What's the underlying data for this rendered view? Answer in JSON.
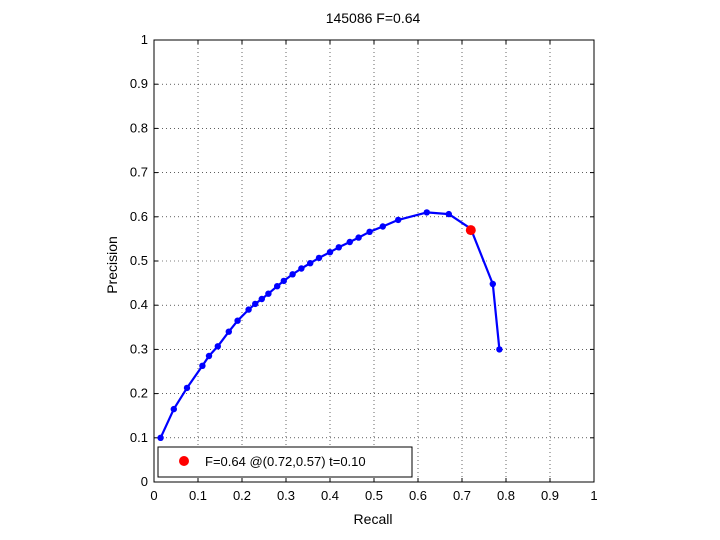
{
  "chart_data": {
    "type": "line",
    "title": "145086 F=0.64",
    "xlabel": "Recall",
    "ylabel": "Precision",
    "xlim": [
      0,
      1
    ],
    "ylim": [
      0,
      1
    ],
    "xticks": [
      "0",
      "0.1",
      "0.2",
      "0.3",
      "0.4",
      "0.5",
      "0.6",
      "0.7",
      "0.8",
      "0.9",
      "1"
    ],
    "yticks": [
      "0",
      "0.1",
      "0.2",
      "0.3",
      "0.4",
      "0.5",
      "0.6",
      "0.7",
      "0.8",
      "0.9",
      "1"
    ],
    "grid": true,
    "legend_position": "bottom-left",
    "colors": {
      "curve": "#0000ff",
      "best": "#ff0000"
    },
    "series": [
      {
        "values": [
          [
            0.015,
            0.1
          ],
          [
            0.045,
            0.165
          ],
          [
            0.075,
            0.213
          ],
          [
            0.11,
            0.263
          ],
          [
            0.125,
            0.285
          ],
          [
            0.145,
            0.307
          ],
          [
            0.17,
            0.34
          ],
          [
            0.19,
            0.365
          ],
          [
            0.215,
            0.39
          ],
          [
            0.23,
            0.403
          ],
          [
            0.245,
            0.414
          ],
          [
            0.26,
            0.426
          ],
          [
            0.28,
            0.443
          ],
          [
            0.295,
            0.455
          ],
          [
            0.315,
            0.47
          ],
          [
            0.335,
            0.483
          ],
          [
            0.355,
            0.495
          ],
          [
            0.375,
            0.507
          ],
          [
            0.4,
            0.52
          ],
          [
            0.42,
            0.531
          ],
          [
            0.445,
            0.543
          ],
          [
            0.465,
            0.553
          ],
          [
            0.49,
            0.566
          ],
          [
            0.52,
            0.578
          ],
          [
            0.555,
            0.593
          ],
          [
            0.62,
            0.61
          ],
          [
            0.67,
            0.606
          ],
          [
            0.72,
            0.573
          ],
          [
            0.77,
            0.448
          ],
          [
            0.785,
            0.3
          ]
        ]
      }
    ],
    "best_point": {
      "recall": 0.72,
      "precision": 0.57,
      "label": "F=0.64 @(0.72,0.57) t=0.10"
    }
  }
}
